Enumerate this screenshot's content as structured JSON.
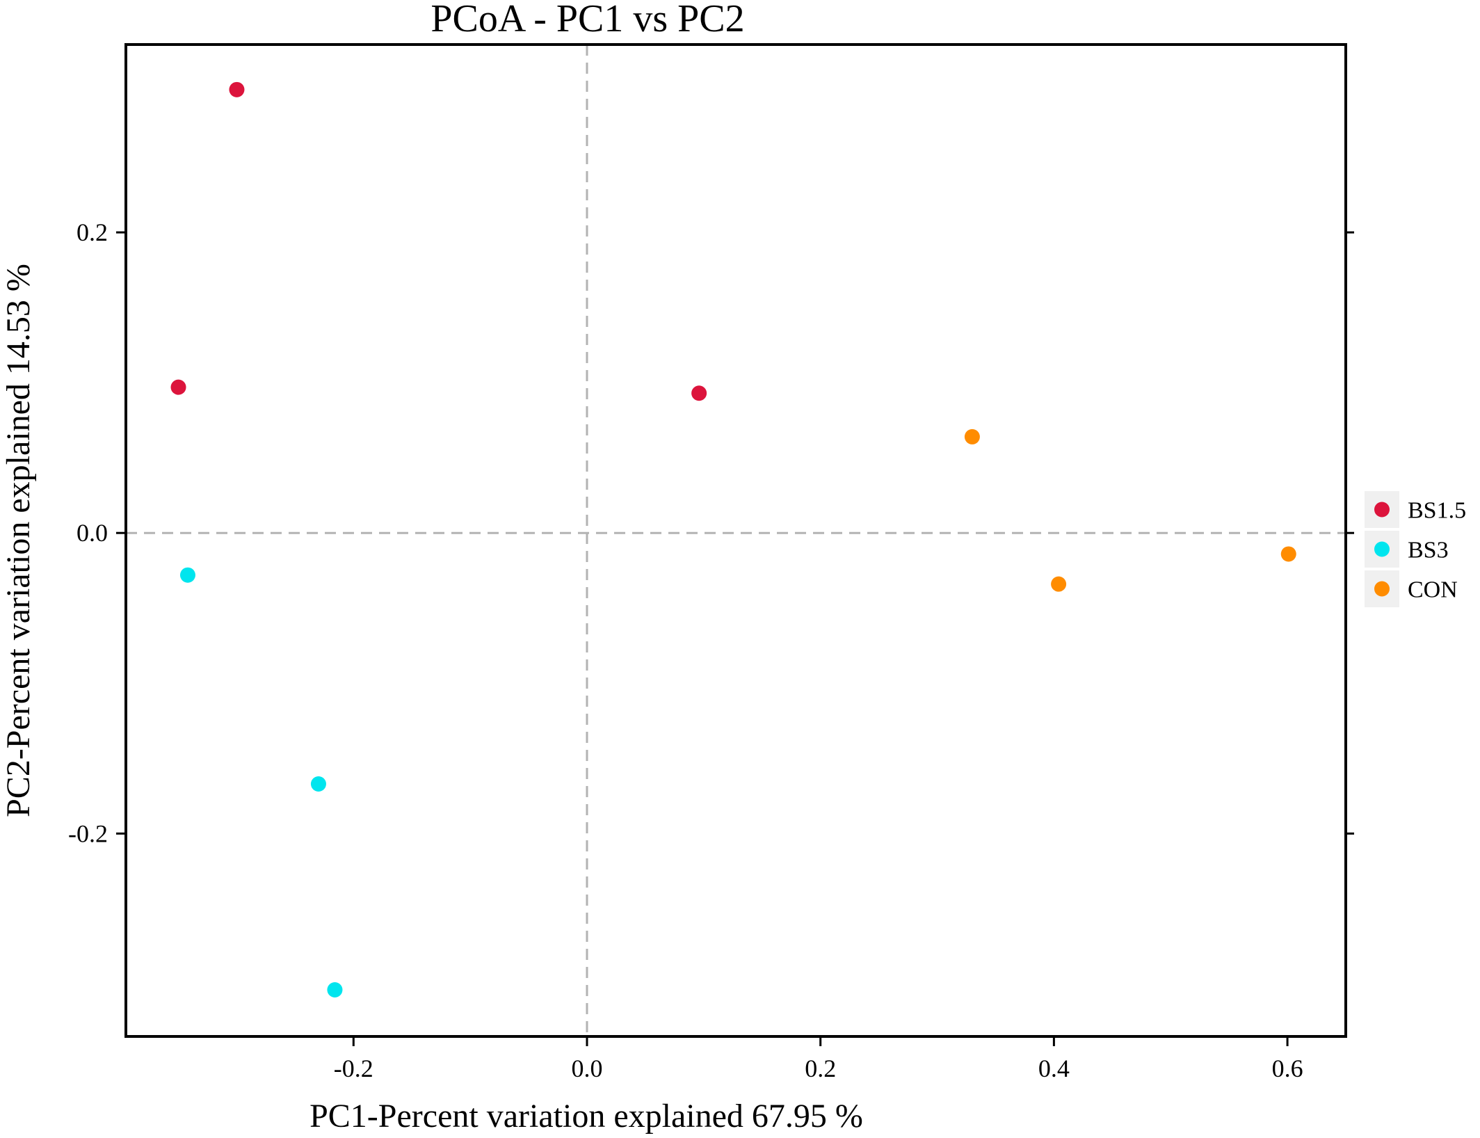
{
  "chart_data": {
    "type": "scatter",
    "title": "PCoA - PC1 vs PC2",
    "xlabel": "PC1-Percent variation explained 67.95 %",
    "ylabel": "PC2-Percent variation explained 14.53 %",
    "xlim": [
      -0.395,
      0.65
    ],
    "ylim": [
      -0.335,
      0.325
    ],
    "xticks": [
      {
        "value": -0.2,
        "label": "-0.2"
      },
      {
        "value": 0.0,
        "label": "0.0"
      },
      {
        "value": 0.2,
        "label": "0.2"
      },
      {
        "value": 0.4,
        "label": "0.4"
      },
      {
        "value": 0.6,
        "label": "0.6"
      }
    ],
    "yticks": [
      {
        "value": -0.2,
        "label": "-0.2"
      },
      {
        "value": 0.0,
        "label": "0.0"
      },
      {
        "value": 0.2,
        "label": "0.2"
      }
    ],
    "reference_lines": {
      "x": 0.0,
      "y": 0.0,
      "style": "dashed"
    },
    "legend_position": "right",
    "series": [
      {
        "name": "BS1.5",
        "color": "#dc143c",
        "points": [
          {
            "x": -0.3,
            "y": 0.295
          },
          {
            "x": -0.35,
            "y": 0.097
          },
          {
            "x": 0.096,
            "y": 0.093
          }
        ]
      },
      {
        "name": "BS3",
        "color": "#00e5ee",
        "points": [
          {
            "x": -0.342,
            "y": -0.028
          },
          {
            "x": -0.23,
            "y": -0.167
          },
          {
            "x": -0.216,
            "y": -0.304
          }
        ]
      },
      {
        "name": "CON",
        "color": "#ff8c00",
        "points": [
          {
            "x": 0.33,
            "y": 0.064
          },
          {
            "x": 0.404,
            "y": -0.034
          },
          {
            "x": 0.601,
            "y": -0.014
          }
        ]
      }
    ]
  }
}
